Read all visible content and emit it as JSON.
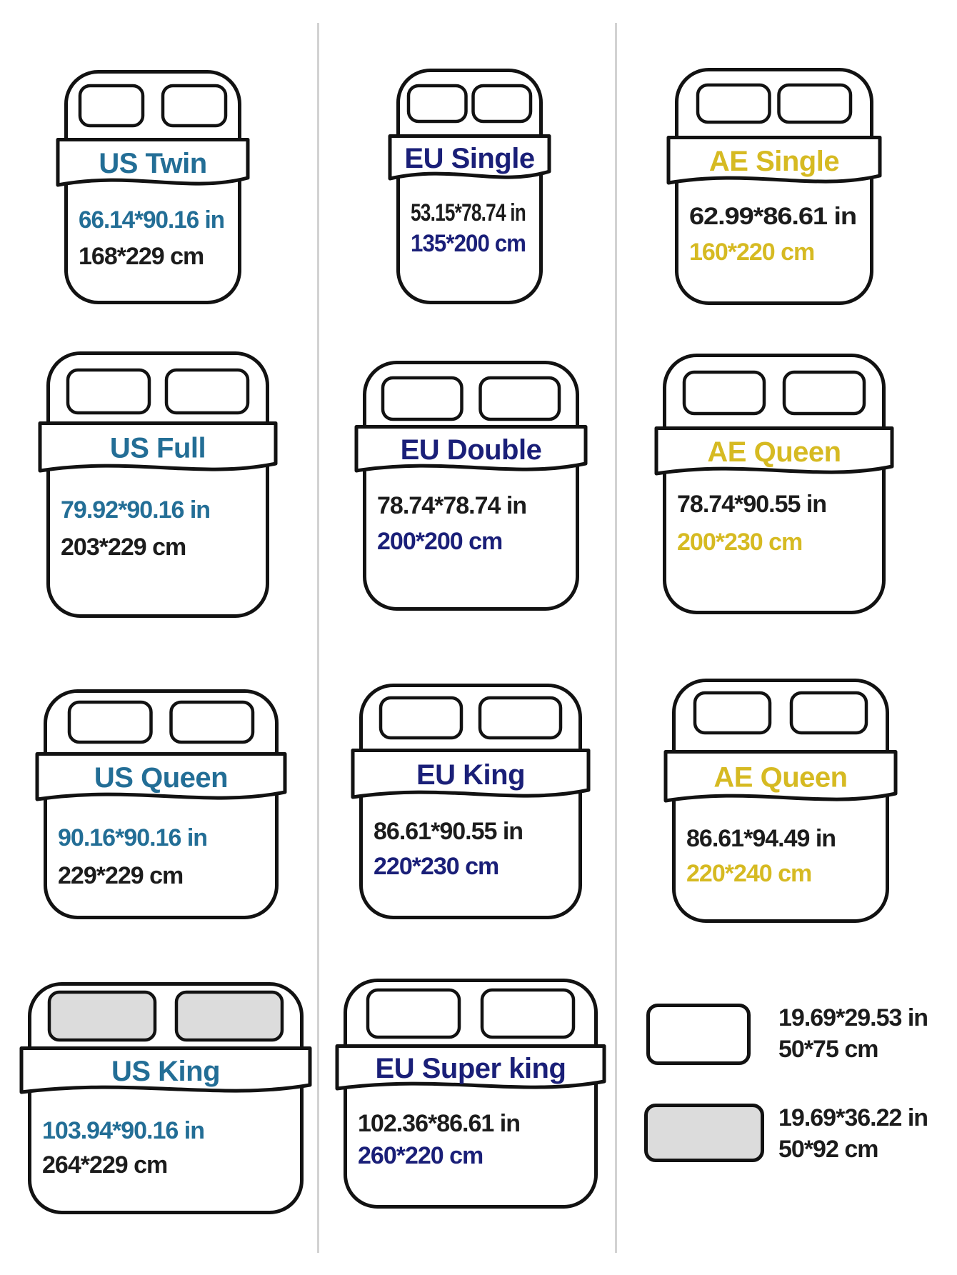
{
  "colors": {
    "us_accent": "#236e96",
    "eu_accent": "#1a1f78",
    "ae_accent": "#d6ba22",
    "text_black": "#1c1c1c",
    "outline": "#121212",
    "divider": "#d2d2d2",
    "pillow_gray_fill": "#dcdcdc"
  },
  "beds": [
    {
      "region": "us",
      "title": "US Twin",
      "inches": "66.14*90.16 in",
      "cm": "168*229 cm",
      "pillow": "white"
    },
    {
      "region": "eu",
      "title": "EU Single",
      "inches": "53.15*78.74 in",
      "cm": "135*200 cm",
      "pillow": "white"
    },
    {
      "region": "ae",
      "title": "AE Single",
      "inches": "62.99*86.61 in",
      "cm": "160*220 cm",
      "pillow": "white"
    },
    {
      "region": "us",
      "title": "US Full",
      "inches": "79.92*90.16 in",
      "cm": "203*229 cm",
      "pillow": "white"
    },
    {
      "region": "eu",
      "title": "EU Double",
      "inches": "78.74*78.74 in",
      "cm": "200*200 cm",
      "pillow": "white"
    },
    {
      "region": "ae",
      "title": "AE Queen",
      "inches": "78.74*90.55 in",
      "cm": "200*230 cm",
      "pillow": "white"
    },
    {
      "region": "us",
      "title": "US Queen",
      "inches": "90.16*90.16 in",
      "cm": "229*229 cm",
      "pillow": "white"
    },
    {
      "region": "eu",
      "title": "EU King",
      "inches": "86.61*90.55 in",
      "cm": "220*230 cm",
      "pillow": "white"
    },
    {
      "region": "ae",
      "title": "AE Queen",
      "inches": "86.61*94.49 in",
      "cm": "220*240 cm",
      "pillow": "white"
    },
    {
      "region": "us",
      "title": "US King",
      "inches": "103.94*90.16 in",
      "cm": "264*229 cm",
      "pillow": "gray"
    },
    {
      "region": "eu",
      "title": "EU Super king",
      "inches": "102.36*86.61 in",
      "cm": "260*220 cm",
      "pillow": "white"
    }
  ],
  "legend": [
    {
      "pillow": "white",
      "inches": "19.69*29.53 in",
      "cm": "50*75 cm"
    },
    {
      "pillow": "gray",
      "inches": "19.69*36.22 in",
      "cm": "50*92 cm"
    }
  ]
}
